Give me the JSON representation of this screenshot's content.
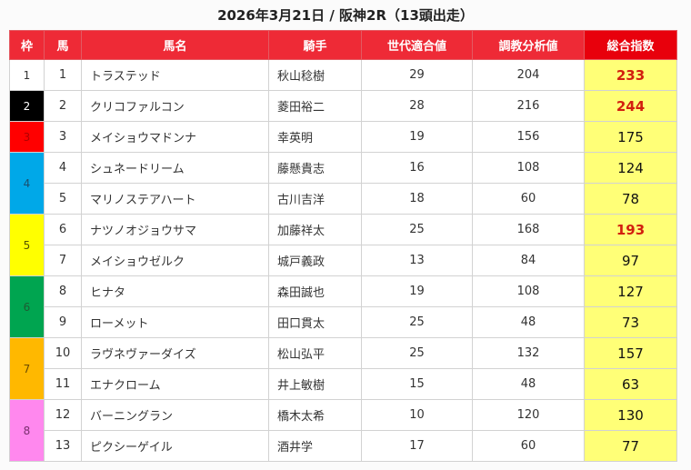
{
  "title": "2026年3月21日 / 阪神2R（13頭出走）",
  "headers": {
    "waku": "枠",
    "uma": "馬",
    "name": "馬名",
    "jockey": "騎手",
    "generation": "世代適合値",
    "training": "調教分析値",
    "total": "総合指数"
  },
  "colors": {
    "header_bg": "#ee2a36",
    "total_header_bg": "#e8000c",
    "total_cell_bg": "#ffff77",
    "highlight_text": "#d21f0f"
  },
  "waku_groups": [
    {
      "waku": "1",
      "bg": "#ffffff",
      "fg": "#333333",
      "rows": 1
    },
    {
      "waku": "2",
      "bg": "#000000",
      "fg": "#ffffff",
      "rows": 1
    },
    {
      "waku": "3",
      "bg": "#ff0000",
      "fg": "#b00000",
      "rows": 1
    },
    {
      "waku": "4",
      "bg": "#00a8e8",
      "fg": "#1a4f6e",
      "rows": 2
    },
    {
      "waku": "5",
      "bg": "#ffff00",
      "fg": "#555500",
      "rows": 2
    },
    {
      "waku": "6",
      "bg": "#00a550",
      "fg": "#1d5d33",
      "rows": 2
    },
    {
      "waku": "7",
      "bg": "#ffb800",
      "fg": "#6b4b00",
      "rows": 2
    },
    {
      "waku": "8",
      "bg": "#ff88ee",
      "fg": "#7a2f6e",
      "rows": 2
    }
  ],
  "rows": [
    {
      "uma": "1",
      "name": "トラステッド",
      "jockey": "秋山稔樹",
      "generation": "29",
      "training": "204",
      "total": "233",
      "highlight": true
    },
    {
      "uma": "2",
      "name": "クリコファルコン",
      "jockey": "菱田裕二",
      "generation": "28",
      "training": "216",
      "total": "244",
      "highlight": true
    },
    {
      "uma": "3",
      "name": "メイショウマドンナ",
      "jockey": "幸英明",
      "generation": "19",
      "training": "156",
      "total": "175",
      "highlight": false
    },
    {
      "uma": "4",
      "name": "シュネードリーム",
      "jockey": "藤懸貴志",
      "generation": "16",
      "training": "108",
      "total": "124",
      "highlight": false
    },
    {
      "uma": "5",
      "name": "マリノステアハート",
      "jockey": "古川吉洋",
      "generation": "18",
      "training": "60",
      "total": "78",
      "highlight": false
    },
    {
      "uma": "6",
      "name": "ナツノオジョウサマ",
      "jockey": "加藤祥太",
      "generation": "25",
      "training": "168",
      "total": "193",
      "highlight": true
    },
    {
      "uma": "7",
      "name": "メイショウゼルク",
      "jockey": "城戸義政",
      "generation": "13",
      "training": "84",
      "total": "97",
      "highlight": false
    },
    {
      "uma": "8",
      "name": "ヒナタ",
      "jockey": "森田誠也",
      "generation": "19",
      "training": "108",
      "total": "127",
      "highlight": false
    },
    {
      "uma": "9",
      "name": "ローメット",
      "jockey": "田口貫太",
      "generation": "25",
      "training": "48",
      "total": "73",
      "highlight": false
    },
    {
      "uma": "10",
      "name": "ラヴネヴァーダイズ",
      "jockey": "松山弘平",
      "generation": "25",
      "training": "132",
      "total": "157",
      "highlight": false
    },
    {
      "uma": "11",
      "name": "エナクローム",
      "jockey": "井上敏樹",
      "generation": "15",
      "training": "48",
      "total": "63",
      "highlight": false
    },
    {
      "uma": "12",
      "name": "バーニングラン",
      "jockey": "橋木太希",
      "generation": "10",
      "training": "120",
      "total": "130",
      "highlight": false
    },
    {
      "uma": "13",
      "name": "ピクシーゲイル",
      "jockey": "酒井学",
      "generation": "17",
      "training": "60",
      "total": "77",
      "highlight": false
    }
  ]
}
